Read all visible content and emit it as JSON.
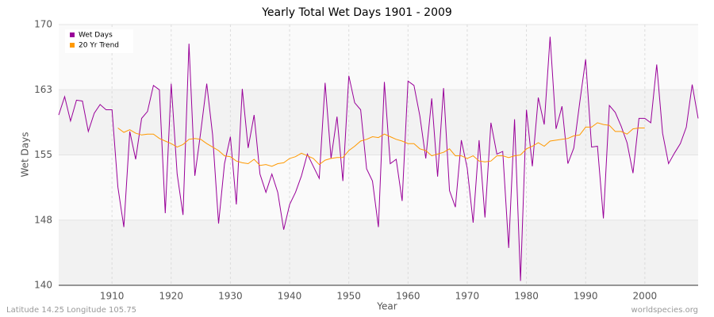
{
  "chart_data": {
    "type": "line",
    "title": "Yearly Total Wet Days 1901 - 2009",
    "xlabel": "Year",
    "ylabel": "Wet Days",
    "footer_left": "Latitude 14.25 Longitude 105.75",
    "footer_right": "worldspecies.org",
    "x": [
      1901,
      1902,
      1903,
      1904,
      1905,
      1906,
      1907,
      1908,
      1909,
      1910,
      1911,
      1912,
      1913,
      1914,
      1915,
      1916,
      1917,
      1918,
      1919,
      1920,
      1921,
      1922,
      1923,
      1924,
      1925,
      1926,
      1927,
      1928,
      1929,
      1930,
      1931,
      1932,
      1933,
      1934,
      1935,
      1936,
      1937,
      1938,
      1939,
      1940,
      1941,
      1942,
      1943,
      1944,
      1945,
      1946,
      1947,
      1948,
      1949,
      1950,
      1951,
      1952,
      1953,
      1954,
      1955,
      1956,
      1957,
      1958,
      1959,
      1960,
      1961,
      1962,
      1963,
      1964,
      1965,
      1966,
      1967,
      1968,
      1969,
      1970,
      1971,
      1972,
      1973,
      1974,
      1975,
      1976,
      1977,
      1978,
      1979,
      1980,
      1981,
      1982,
      1983,
      1984,
      1985,
      1986,
      1987,
      1988,
      1989,
      1990,
      1991,
      1992,
      1993,
      1994,
      1995,
      1996,
      1997,
      1998,
      1999,
      2000,
      2001,
      2002,
      2003,
      2004,
      2005,
      2006,
      2007,
      2008,
      2009
    ],
    "series": [
      {
        "name": "Wet Days",
        "color": "#990099",
        "values": [
          159.6,
          161.7,
          158.9,
          161.3,
          161.2,
          157.7,
          159.8,
          160.8,
          160.2,
          160.2,
          151.3,
          146.7,
          157.7,
          154.5,
          159.2,
          160.0,
          163.0,
          162.5,
          148.3,
          163.2,
          152.8,
          148.1,
          167.8,
          152.6,
          157.7,
          163.2,
          157.3,
          147.1,
          154.0,
          157.1,
          149.3,
          162.6,
          155.8,
          159.6,
          152.8,
          150.7,
          152.8,
          150.7,
          146.4,
          149.3,
          150.7,
          152.6,
          155.1,
          153.7,
          152.3,
          163.3,
          154.6,
          159.4,
          152.0,
          164.1,
          161.0,
          160.2,
          153.4,
          152.0,
          146.7,
          163.4,
          154.0,
          154.5,
          149.7,
          163.5,
          163.0,
          159.5,
          154.6,
          161.5,
          152.5,
          162.7,
          150.9,
          149.0,
          156.7,
          153.5,
          147.2,
          156.7,
          147.8,
          158.7,
          155.1,
          155.4,
          144.3,
          159.1,
          140.5,
          160.2,
          153.7,
          161.6,
          158.5,
          168.6,
          158.0,
          160.6,
          154.0,
          155.8,
          161.0,
          166.0,
          155.9,
          156.0,
          147.7,
          160.7,
          159.9,
          158.3,
          156.4,
          152.9,
          159.2,
          159.2,
          158.7,
          165.4,
          157.5,
          154.0,
          155.2,
          156.3,
          158.2,
          163.1,
          159.2
        ]
      },
      {
        "name": "20 Yr Trend",
        "color": "#ff9900",
        "values": [
          null,
          null,
          null,
          null,
          null,
          null,
          null,
          null,
          null,
          null,
          158.1,
          157.6,
          157.9,
          157.5,
          157.3,
          157.4,
          157.4,
          156.9,
          156.6,
          156.3,
          155.9,
          156.2,
          156.8,
          156.9,
          156.8,
          156.3,
          155.9,
          155.5,
          154.9,
          154.8,
          154.3,
          154.1,
          154.0,
          154.5,
          153.8,
          153.9,
          153.7,
          154.0,
          154.1,
          154.6,
          154.8,
          155.2,
          154.9,
          154.6,
          153.9,
          154.4,
          154.6,
          154.7,
          154.7,
          155.5,
          156.0,
          156.6,
          156.8,
          157.1,
          157.0,
          157.4,
          157.1,
          156.8,
          156.6,
          156.3,
          156.3,
          155.7,
          155.5,
          154.9,
          155.1,
          155.3,
          155.7,
          154.9,
          154.9,
          154.6,
          154.9,
          154.3,
          154.2,
          154.3,
          154.9,
          154.9,
          154.7,
          154.9,
          155.0,
          155.7,
          156.0,
          156.4,
          156.0,
          156.6,
          156.7,
          156.8,
          156.9,
          157.2,
          157.3,
          158.2,
          158.2,
          158.7,
          158.5,
          158.4,
          157.7,
          157.7,
          157.4,
          158.0,
          158.1,
          158.1,
          null,
          null,
          null,
          null,
          null,
          null,
          null,
          null,
          null
        ]
      }
    ],
    "xlim": [
      1901,
      2009
    ],
    "xticks": [
      1910,
      1920,
      1930,
      1940,
      1950,
      1960,
      1970,
      1980,
      1990,
      2000
    ],
    "ylim": [
      140,
      170
    ],
    "yticks": [
      140,
      {
        "value": 147.5,
        "label": "148"
      },
      155,
      {
        "value": 162.5,
        "label": "163"
      },
      170
    ],
    "grid": true,
    "legend": "upper-left"
  }
}
